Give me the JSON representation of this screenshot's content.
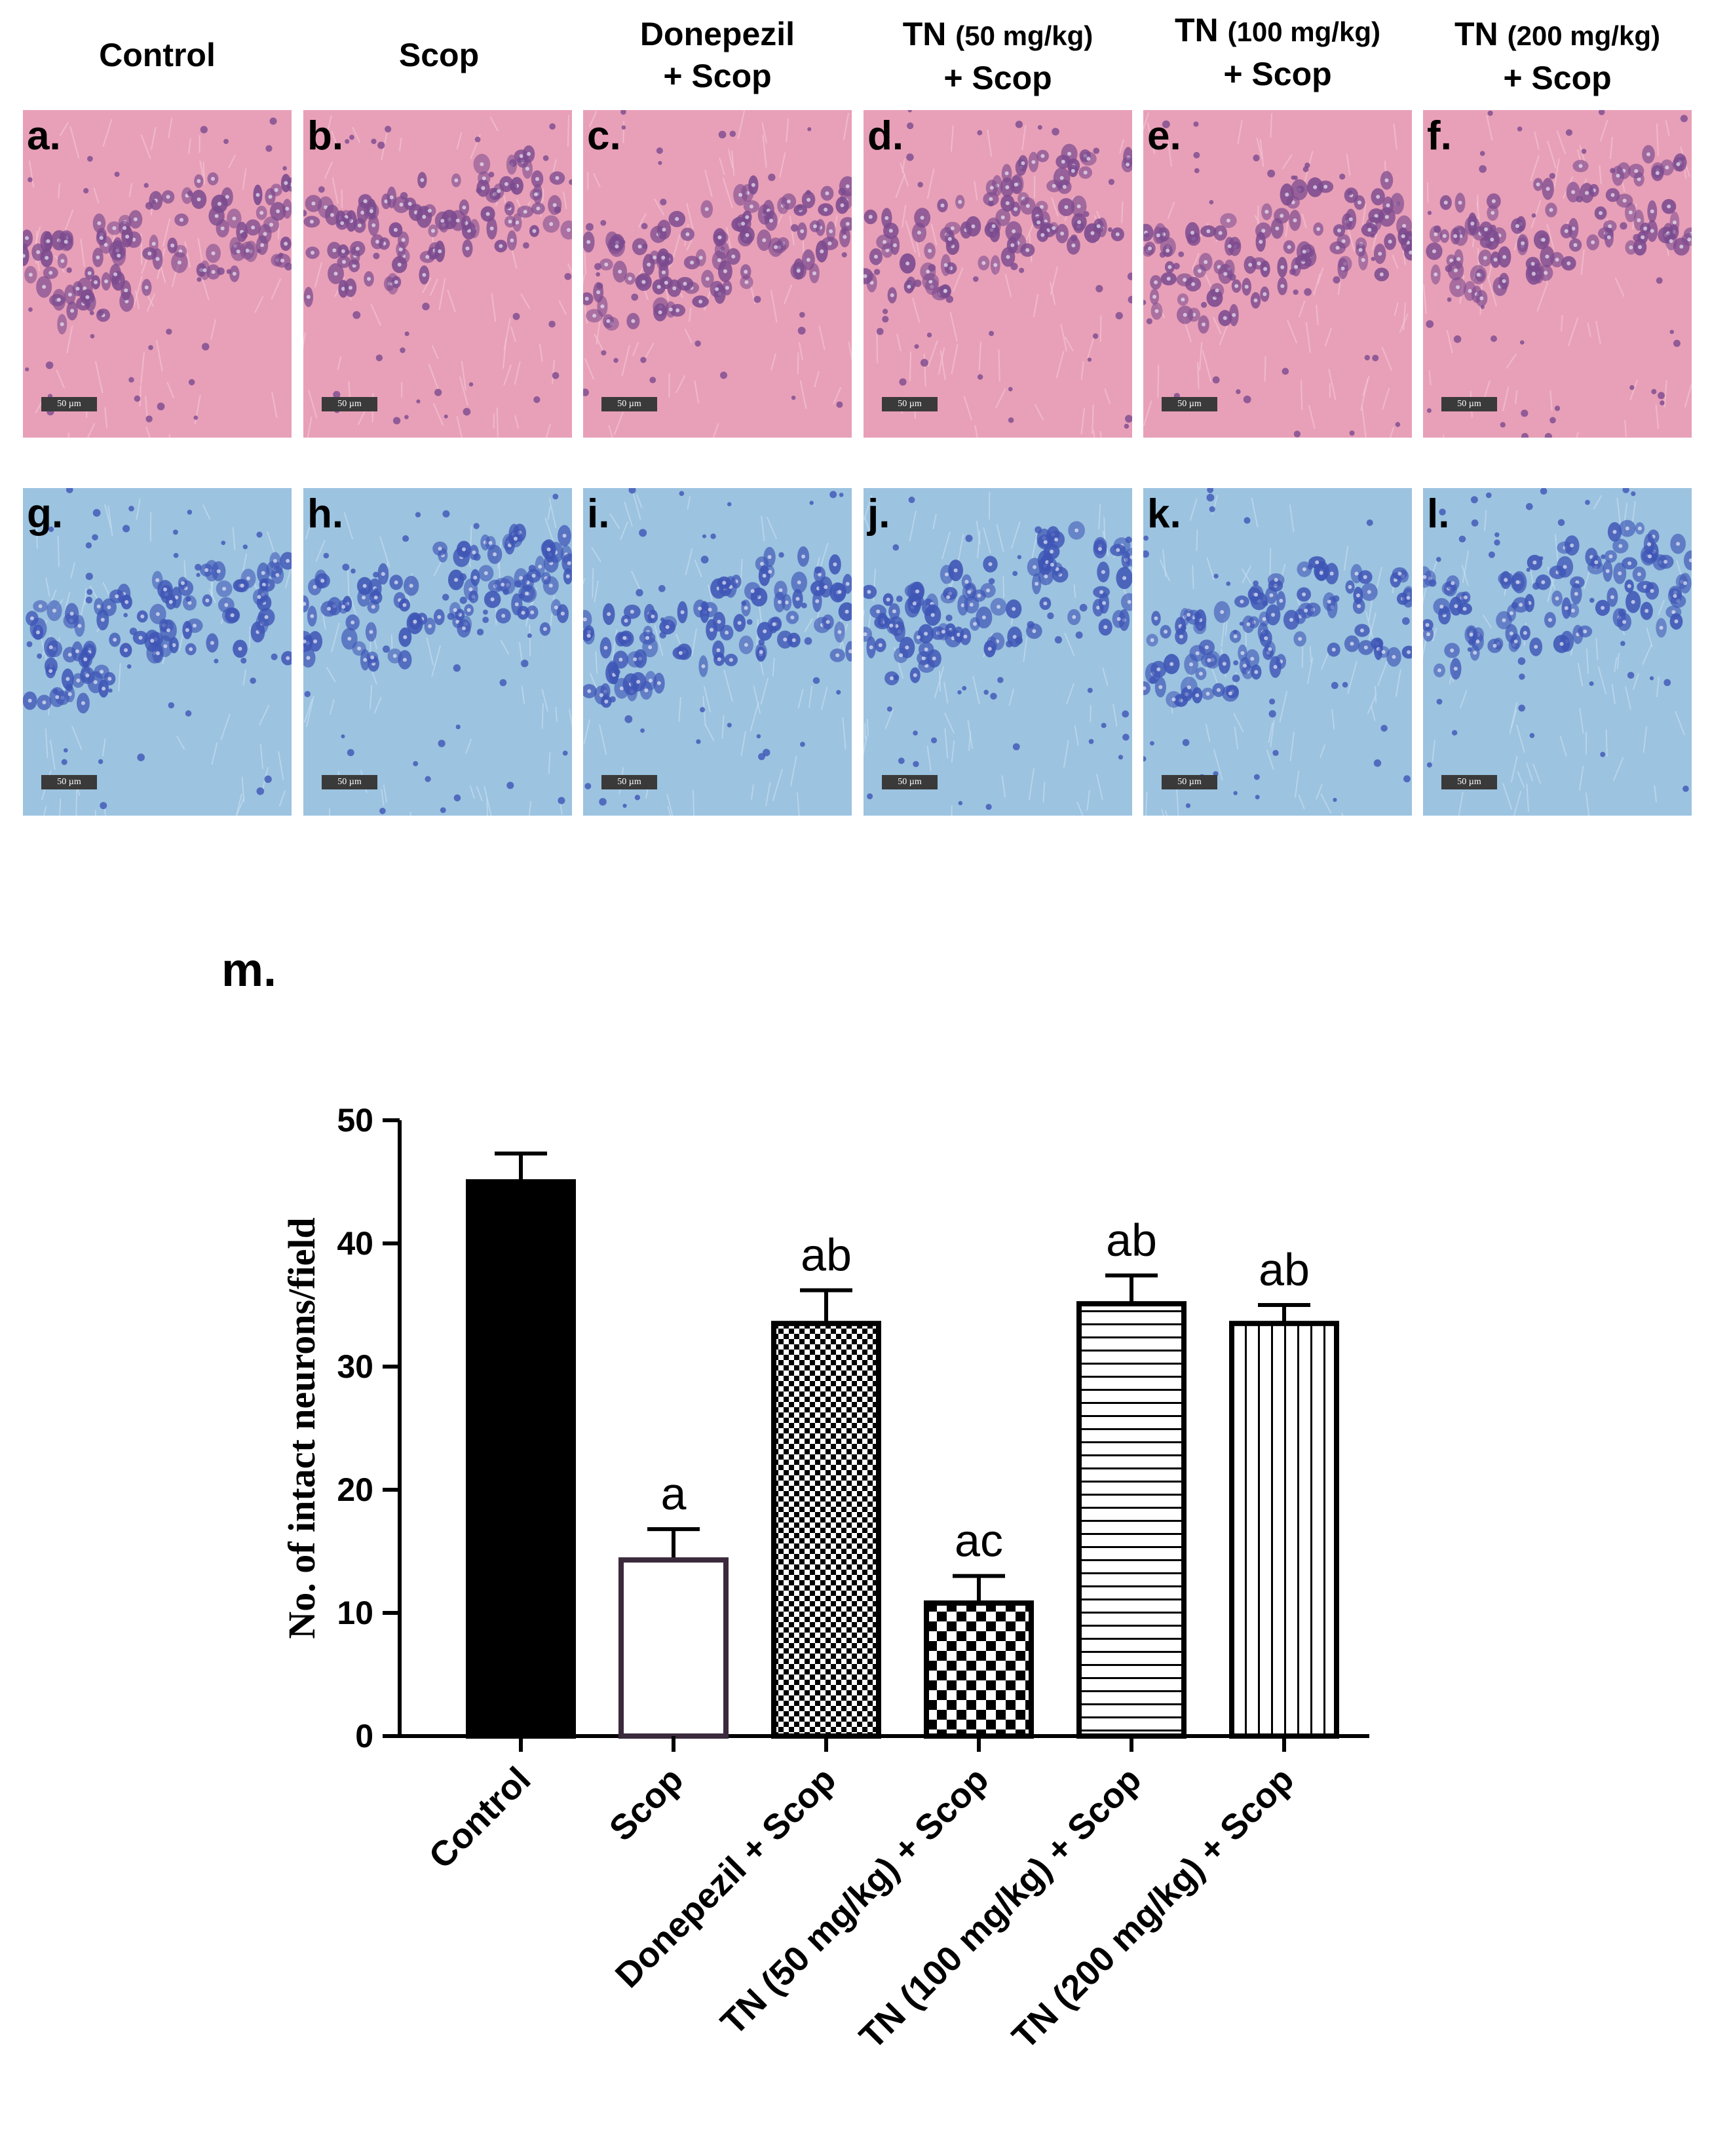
{
  "column_titles": [
    {
      "line1": "Control",
      "line2": ""
    },
    {
      "line1": "Scop",
      "line2": ""
    },
    {
      "line1": "Donepezil",
      "line2": "+ Scop"
    },
    {
      "line1": "TN",
      "line1_small": "(50 mg/kg)",
      "line2": "+ Scop"
    },
    {
      "line1": "TN",
      "line1_small": "(100 mg/kg)",
      "line2": "+ Scop"
    },
    {
      "line1": "TN",
      "line1_small": "(200 mg/kg)",
      "line2": "+ Scop"
    }
  ],
  "panels_he": [
    {
      "letter": "a.",
      "scale": "50 µm"
    },
    {
      "letter": "b.",
      "scale": "50 µm"
    },
    {
      "letter": "c.",
      "scale": "50 µm"
    },
    {
      "letter": "d.",
      "scale": "50 µm"
    },
    {
      "letter": "e.",
      "scale": "50 µm"
    },
    {
      "letter": "f.",
      "scale": "50 µm"
    }
  ],
  "panels_nissl": [
    {
      "letter": "g.",
      "scale": "50 µm"
    },
    {
      "letter": "h.",
      "scale": "50 µm"
    },
    {
      "letter": "i.",
      "scale": "50 µm"
    },
    {
      "letter": "j.",
      "scale": "50 µm"
    },
    {
      "letter": "k.",
      "scale": "50 µm"
    },
    {
      "letter": "l.",
      "scale": "50 µm"
    }
  ],
  "colors": {
    "he_background": "#e8a0b8",
    "he_cells": "#7b4a8e",
    "nissl_background": "#9cc3e0",
    "nissl_cells": "#3e55b5"
  },
  "chart_label": "m.",
  "chart_data": {
    "type": "bar",
    "title": "",
    "xlabel": "",
    "ylabel": "No. of intact neurons/field",
    "ylim": [
      0,
      50
    ],
    "yticks": [
      0,
      10,
      20,
      30,
      40,
      50
    ],
    "categories": [
      "Control",
      "Scop",
      "Donepezil + Scop",
      "TN (50 mg/kg) + Scop",
      "TN (100 mg/kg) + Scop",
      "TN (200 mg/kg) + Scop"
    ],
    "values": [
      45,
      14.3,
      33.5,
      10.8,
      35.1,
      33.5
    ],
    "errors": [
      2.3,
      2.5,
      2.7,
      2.2,
      2.3,
      1.5
    ],
    "annotations": [
      "",
      "a",
      "ab",
      "ac",
      "ab",
      "ab"
    ],
    "fills": [
      "solid-black",
      "white",
      "small-checker",
      "large-checker",
      "horizontal-lines",
      "vertical-lines"
    ]
  }
}
